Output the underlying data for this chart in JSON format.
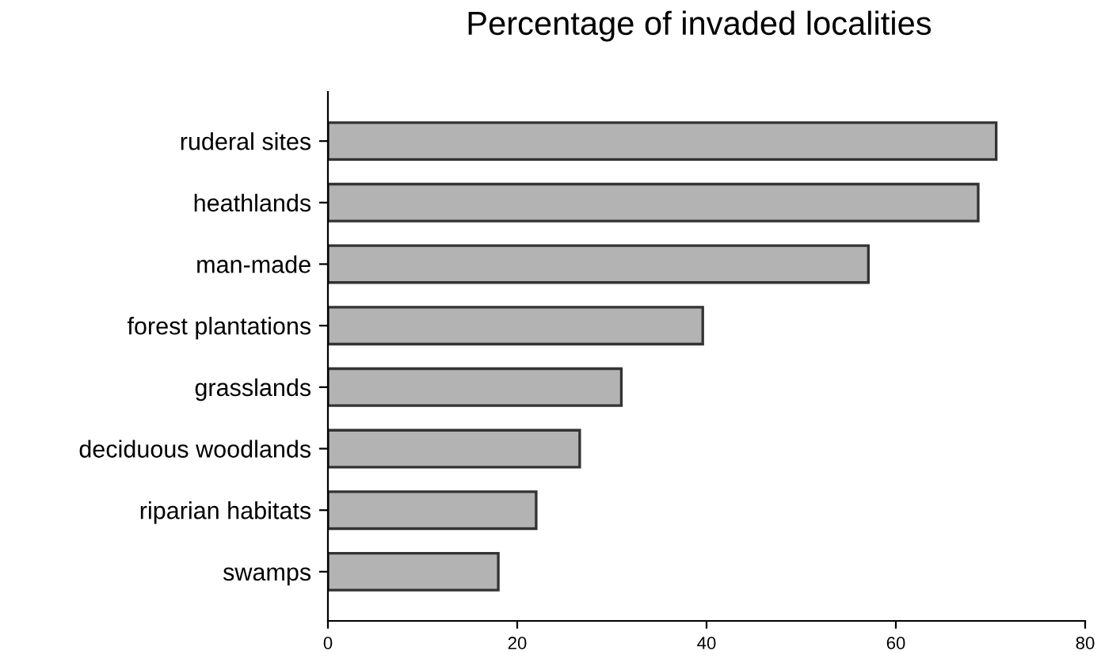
{
  "chart_data": {
    "type": "bar",
    "orientation": "horizontal",
    "title": "Percentage of invaded localities",
    "categories": [
      "ruderal sites",
      "heathlands",
      "man-made",
      "forest plantations",
      "grasslands",
      "deciduous woodlands",
      "riparian habitats",
      "swamps"
    ],
    "values": [
      70.6,
      68.7,
      57.1,
      39.6,
      31.0,
      26.6,
      22.0,
      18.0
    ],
    "color": "#b3b3b3",
    "xlim": [
      0,
      80
    ],
    "xticks": [
      0,
      20,
      40,
      60,
      80
    ],
    "grid": false,
    "legend": false
  }
}
